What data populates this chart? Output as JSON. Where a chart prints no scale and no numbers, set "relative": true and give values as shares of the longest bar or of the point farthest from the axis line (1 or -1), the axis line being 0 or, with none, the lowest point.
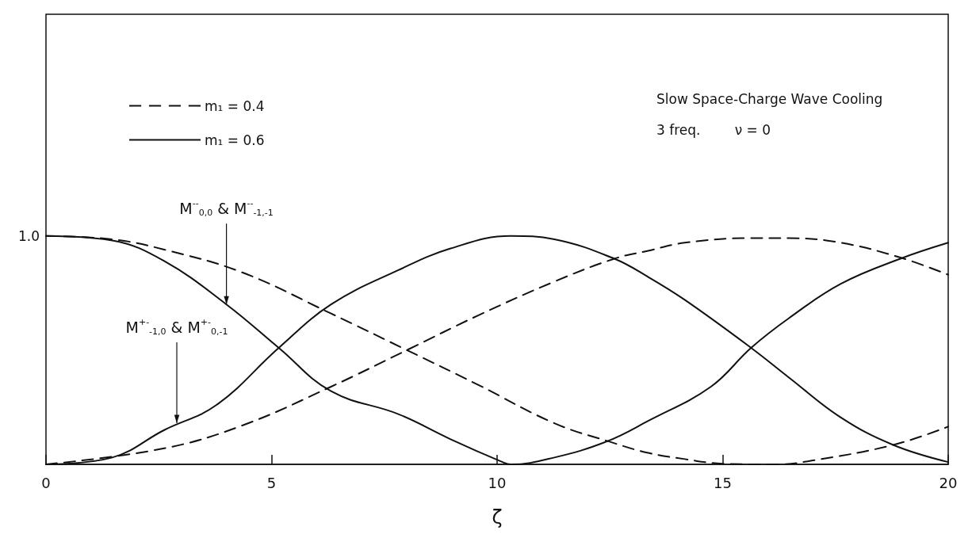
{
  "chart_data": {
    "type": "line",
    "title": "Slow Space-Charge Wave Cooling",
    "subtitle": "3 freq.        ν = 0",
    "xlabel": "ζ",
    "relative": true,
    "xlim": [
      0,
      20
    ],
    "xticks": [
      0,
      5,
      10,
      15,
      20
    ],
    "grid": false,
    "legend": "top left",
    "marker": "none",
    "series": [
      {
        "name": "m₁ = 0.4",
        "color": "#111111",
        "line_style": "dashed",
        "x": [
          0,
          1.47,
          2.62,
          4.35,
          6.32,
          8.0,
          9.56,
          11.27,
          12.48,
          13.35,
          14.16,
          15.0,
          16.2,
          17.0,
          18.78,
          20
        ],
        "values": [
          1.0,
          0.985,
          0.94,
          0.84,
          0.66,
          0.5,
          0.35,
          0.18,
          0.1,
          0.05,
          0.023,
          0.003,
          0,
          0.017,
          0.085,
          0.165
        ]
      },
      {
        "color": "#111111",
        "line_style": "dashed",
        "x": [
          0,
          2.62,
          4.35,
          6.32,
          8.0,
          9.56,
          11.27,
          12.6,
          13.35,
          14.16,
          15.6,
          16.47,
          17.62,
          18.94,
          20
        ],
        "values": [
          0,
          0.07,
          0.17,
          0.34,
          0.5,
          0.65,
          0.8,
          0.9,
          0.935,
          0.97,
          0.99,
          0.99,
          0.97,
          0.905,
          0.83
        ]
      },
      {
        "name": "m₁ = 0.6",
        "color": "#111111",
        "line_style": "solid",
        "x": [
          0,
          1.47,
          2.62,
          4.0,
          5.16,
          6.32,
          7.81,
          8.97,
          10.12,
          10.3,
          11.27,
          12.43,
          13.35,
          14.74,
          15.63,
          16.47,
          17.62,
          18.94,
          20
        ],
        "values": [
          1.0,
          0.98,
          0.89,
          0.7,
          0.51,
          0.32,
          0.22,
          0.11,
          0.01,
          0,
          0.03,
          0.1,
          0.19,
          0.34,
          0.51,
          0.64,
          0.79,
          0.9,
          0.97
        ]
      },
      {
        "color": "#111111",
        "line_style": "solid",
        "x": [
          0,
          1.47,
          2.62,
          3.78,
          5.16,
          6.32,
          7.81,
          8.97,
          10.3,
          11.27,
          12.6,
          13.35,
          14.16,
          15.63,
          16.47,
          17.62,
          18.78,
          20
        ],
        "values": [
          0,
          0.03,
          0.15,
          0.26,
          0.51,
          0.7,
          0.85,
          0.945,
          1.0,
          0.985,
          0.9,
          0.82,
          0.72,
          0.51,
          0.38,
          0.205,
          0.085,
          0.01
        ]
      }
    ],
    "annotations": [
      {
        "text": "1.0",
        "x": 0,
        "y": 1
      },
      {
        "text": "M$^{--}$$_{0,0}$ & M$^{--}$$_{-1,-1}$",
        "x": 4.0,
        "y": 0.7
      },
      {
        "text": "M$^{+-}$$_{-1,0}$ & M$^{+-}$$_{0,-1}$",
        "x": 2.9,
        "y": 0.18
      }
    ]
  }
}
